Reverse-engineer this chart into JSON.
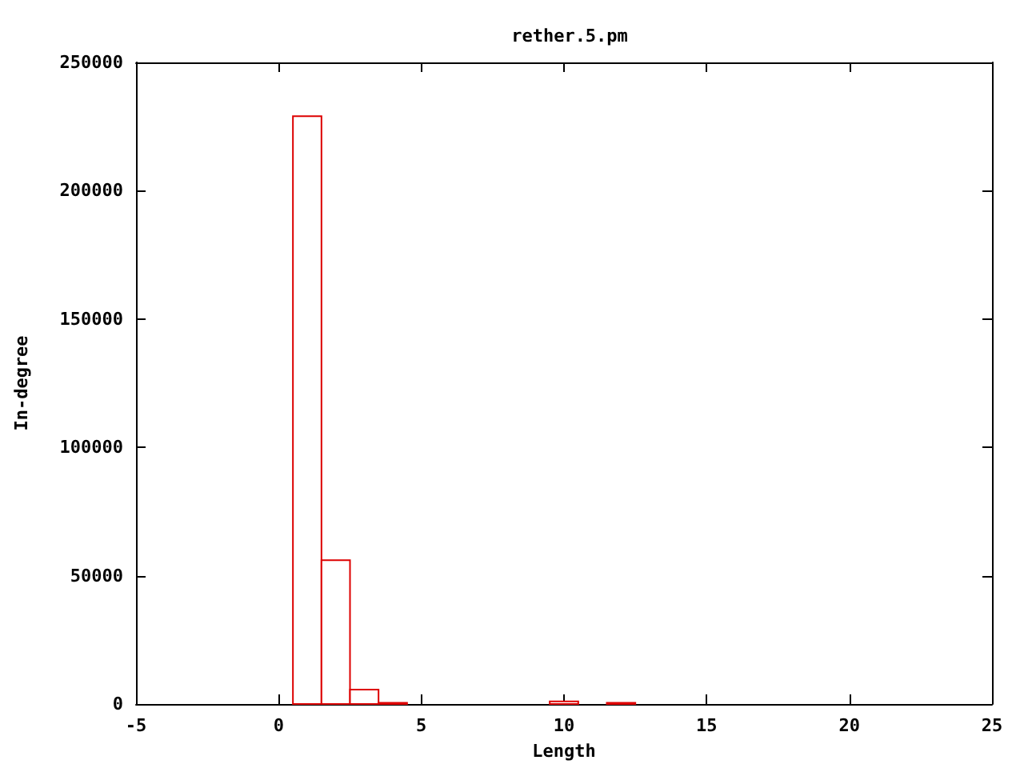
{
  "chart_data": {
    "type": "histogram",
    "title": "rether.5.pm",
    "xlabel": "Length",
    "ylabel": "In-degree",
    "bins": [
      0.5,
      1.5,
      2.5,
      3.5,
      4.5,
      5.5,
      6.5,
      7.5,
      8.5,
      9.5,
      10.5,
      11.5,
      12.5
    ],
    "values": [
      229000,
      56000,
      5600,
      500,
      0,
      0,
      0,
      0,
      0,
      1000,
      0,
      500
    ],
    "color": "#dd0000",
    "xlim": [
      -5,
      25
    ],
    "xticks": [
      -5,
      0,
      5,
      10,
      15,
      20,
      25
    ],
    "ylim": [
      0,
      250000
    ],
    "yticks": [
      0,
      50000,
      100000,
      150000,
      200000,
      250000
    ],
    "grid": false
  }
}
